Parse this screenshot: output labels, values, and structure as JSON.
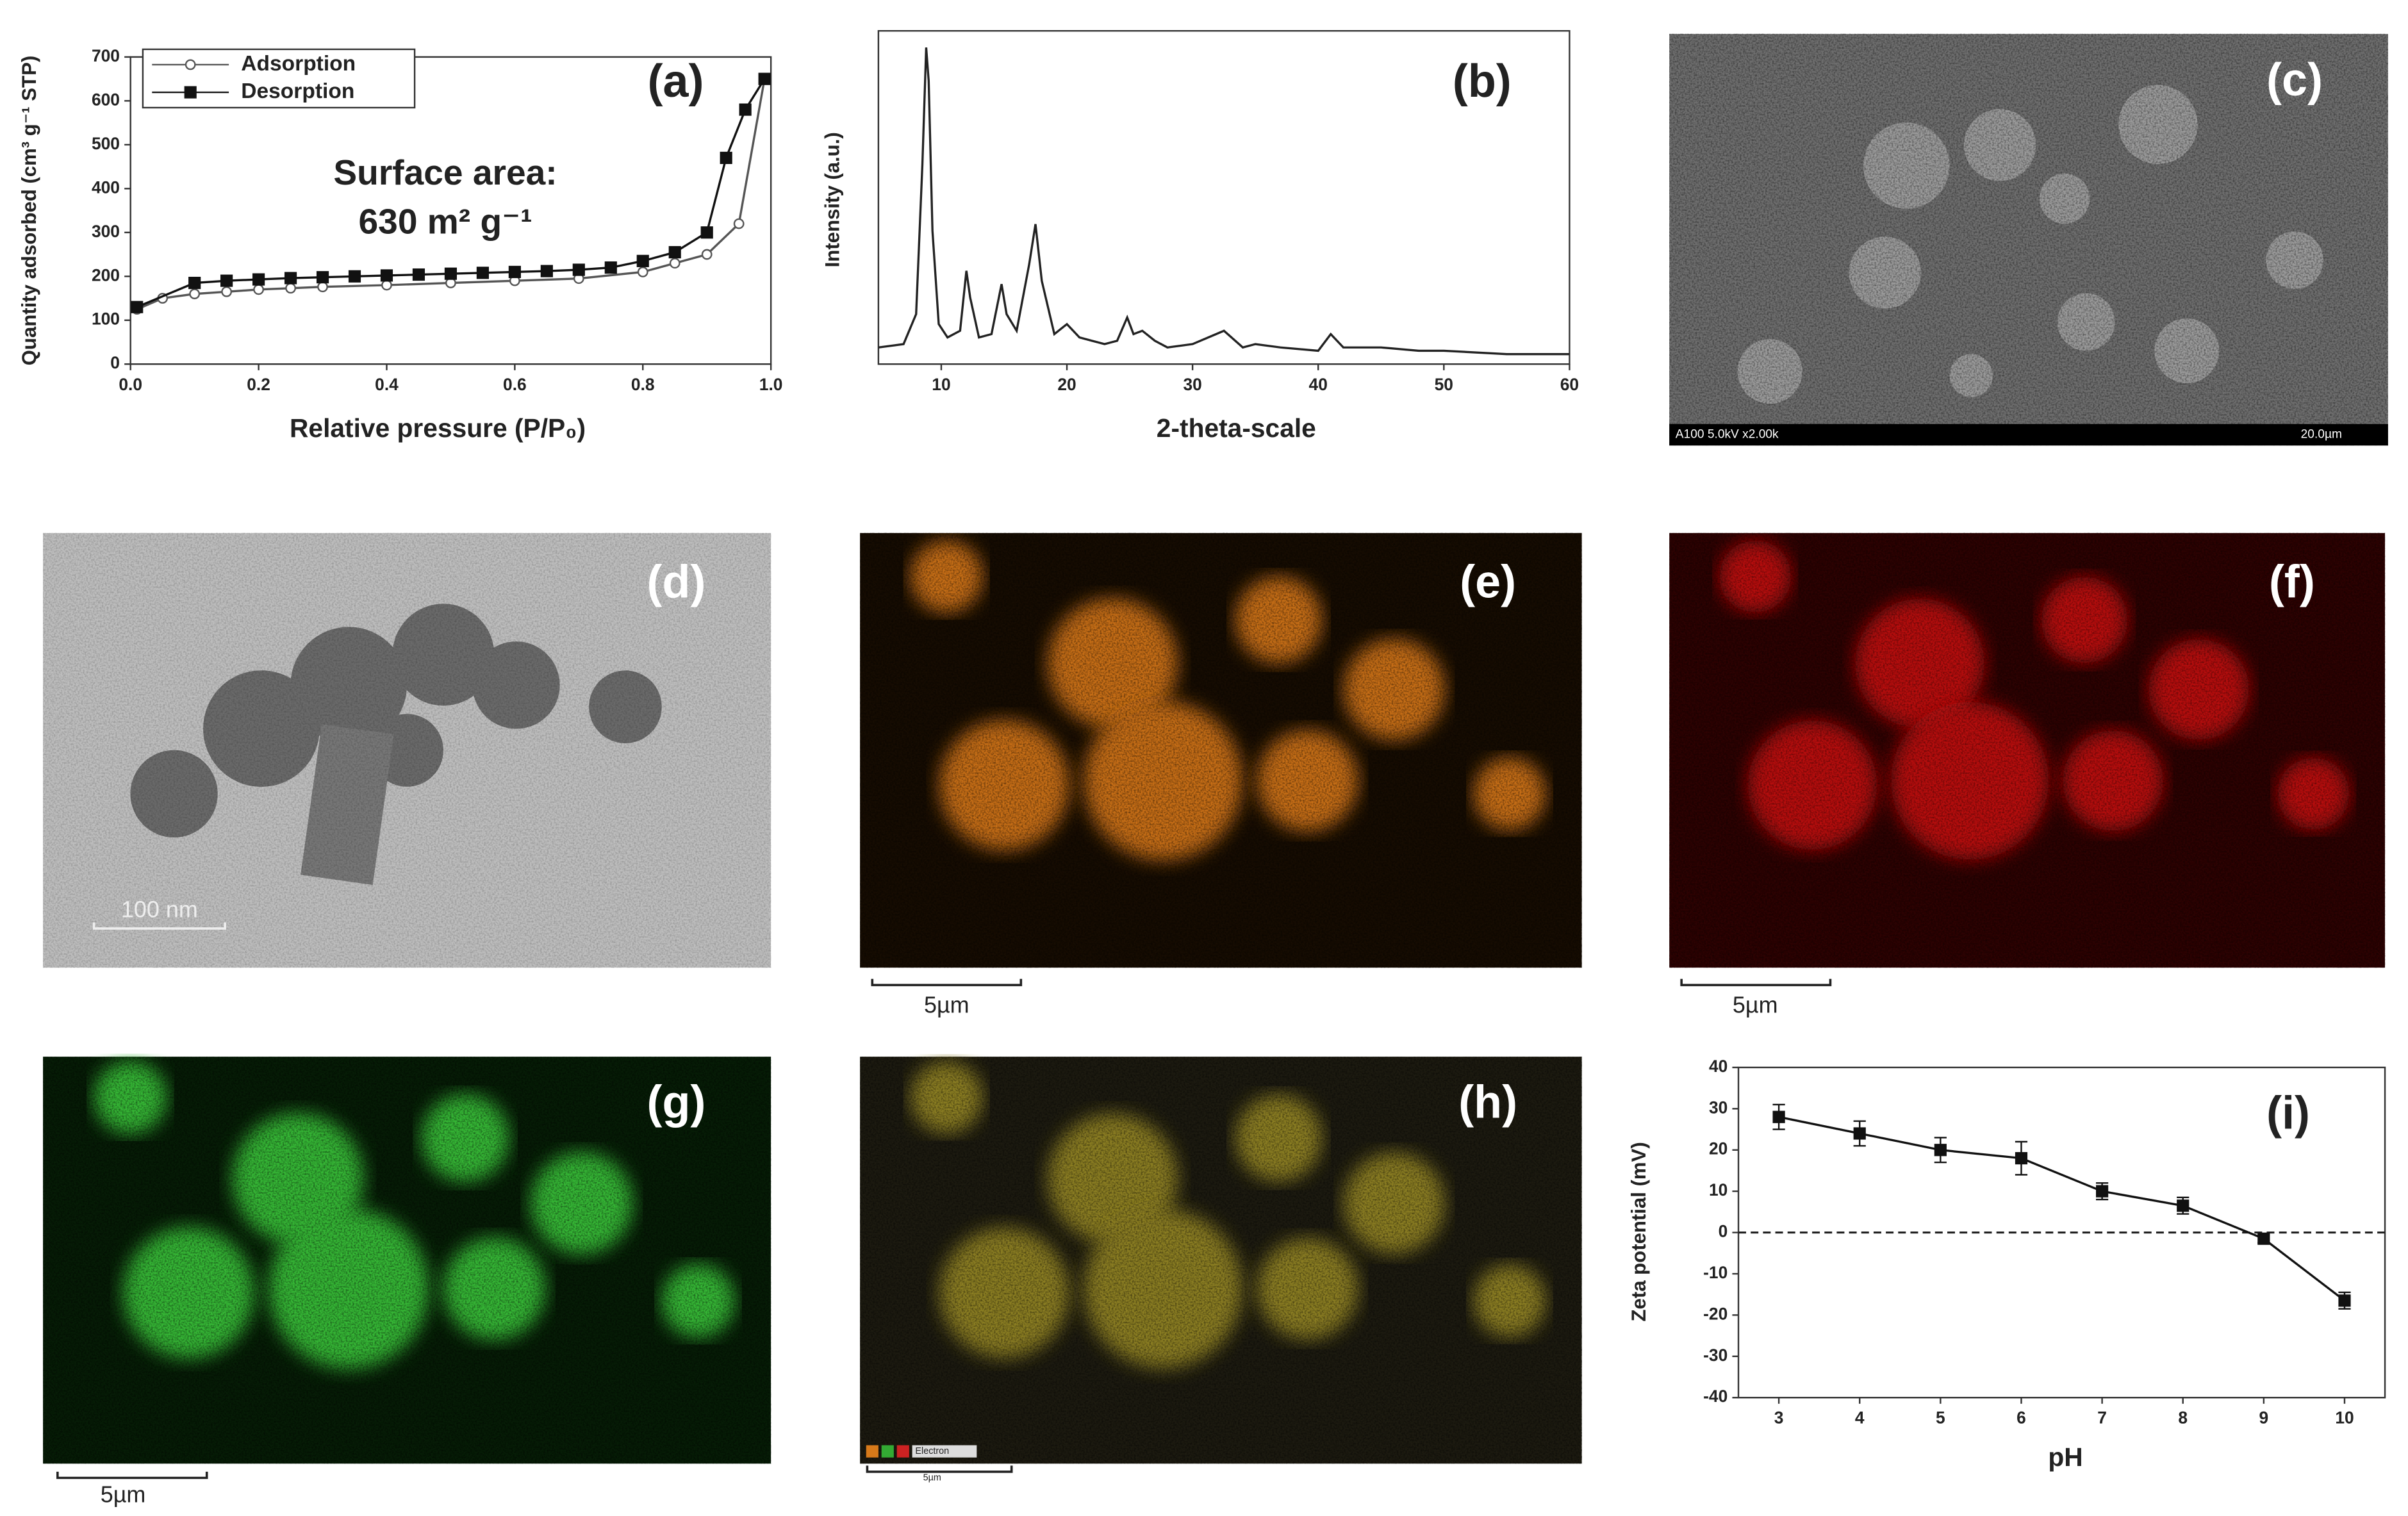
{
  "chart_data": [
    {
      "type": "line",
      "label": "(a)",
      "x_label": "Relative pressure (P/P₀)",
      "y_label": "Quantity adsorbed (cm³ g⁻¹ STP)",
      "annotations": [
        "Surface area:",
        "630 m² g⁻¹"
      ],
      "xlim": [
        0,
        1
      ],
      "ylim": [
        0,
        700
      ],
      "xticks": [
        {
          "value": 0,
          "label": "0.0"
        },
        {
          "value": 0.2,
          "label": "0.2"
        },
        {
          "value": 0.4,
          "label": "0.4"
        },
        {
          "value": 0.6,
          "label": "0.6"
        },
        {
          "value": 0.8,
          "label": "0.8"
        },
        {
          "value": 1,
          "label": "1.0"
        }
      ],
      "yticks": [
        0,
        100,
        200,
        300,
        400,
        500,
        600,
        700
      ],
      "legend": "top-left",
      "series": [
        {
          "name": "Adsorption",
          "color": "#555555",
          "marker": "circle",
          "filled": false,
          "x": [
            0.01,
            0.05,
            0.1,
            0.15,
            0.2,
            0.25,
            0.3,
            0.4,
            0.5,
            0.6,
            0.7,
            0.8,
            0.85,
            0.9,
            0.95,
            0.99
          ],
          "values": [
            125,
            150,
            160,
            165,
            170,
            173,
            176,
            180,
            185,
            190,
            195,
            210,
            230,
            250,
            320,
            650
          ]
        },
        {
          "name": "Desorption",
          "color": "#111111",
          "marker": "square",
          "filled": true,
          "x": [
            0.01,
            0.1,
            0.15,
            0.2,
            0.25,
            0.3,
            0.35,
            0.4,
            0.45,
            0.5,
            0.55,
            0.6,
            0.65,
            0.7,
            0.75,
            0.8,
            0.85,
            0.9,
            0.93,
            0.96,
            0.99
          ],
          "values": [
            130,
            185,
            190,
            193,
            196,
            198,
            200,
            202,
            204,
            206,
            208,
            210,
            212,
            215,
            220,
            235,
            255,
            300,
            470,
            580,
            650
          ]
        }
      ]
    },
    {
      "type": "line",
      "label": "(b)",
      "x_label": "2-theta-scale",
      "y_label": "Intensity (a.u.)",
      "xlim": [
        5,
        60
      ],
      "ylim": [
        0,
        100
      ],
      "xticks": [
        10,
        20,
        30,
        40,
        50,
        60
      ],
      "x": [
        5,
        7,
        8,
        8.5,
        8.8,
        9,
        9.3,
        9.8,
        10.5,
        11.5,
        12,
        12.3,
        13,
        14,
        14.8,
        15.2,
        16,
        17,
        17.5,
        18,
        19,
        20,
        21,
        22,
        23,
        24,
        24.8,
        25.3,
        26,
        27,
        28,
        30,
        32.5,
        34,
        35,
        37,
        40,
        41,
        42,
        45,
        48,
        50,
        55,
        60
      ],
      "series": [
        {
          "color": "#222222",
          "values": [
            5,
            6,
            15,
            60,
            95,
            85,
            40,
            12,
            8,
            10,
            28,
            20,
            8,
            9,
            24,
            15,
            10,
            30,
            42,
            25,
            9,
            12,
            8,
            7,
            6,
            7,
            14,
            9,
            10,
            7,
            5,
            6,
            10,
            5,
            6,
            5,
            4,
            9,
            5,
            5,
            4,
            4,
            3,
            3
          ]
        }
      ]
    },
    {
      "type": "line",
      "label": "(i)",
      "x_label": "pH",
      "y_label": "Zeta potential (mV)",
      "xlim": [
        2.5,
        10.5
      ],
      "ylim": [
        -40,
        40
      ],
      "xticks": [
        3,
        4,
        5,
        6,
        7,
        8,
        9,
        10
      ],
      "yticks": [
        -40,
        -30,
        -20,
        -10,
        0,
        10,
        20,
        30,
        40
      ],
      "reference_line": 0,
      "x": [
        3,
        4,
        5,
        6,
        7,
        8,
        9,
        10
      ],
      "series": [
        {
          "color": "#111111",
          "marker": "square",
          "filled": true,
          "values": [
            28,
            24,
            20,
            18,
            10,
            6.5,
            -1.5,
            -16.5
          ],
          "errors": [
            3,
            3,
            3,
            4,
            2,
            2,
            1,
            2
          ]
        }
      ]
    }
  ],
  "panels": [
    {
      "label": "(c)",
      "info": "A100 5.0kV x2.00k",
      "scale": "20.0µm"
    },
    {
      "label": "(d)",
      "scale": "100 nm"
    },
    {
      "label": "(e)",
      "scale": "5µm"
    },
    {
      "label": "(f)",
      "scale": "5µm"
    },
    {
      "label": "(g)",
      "scale": "5µm"
    },
    {
      "label": "(h)",
      "scale": "5µm",
      "legend": "Electron"
    }
  ]
}
